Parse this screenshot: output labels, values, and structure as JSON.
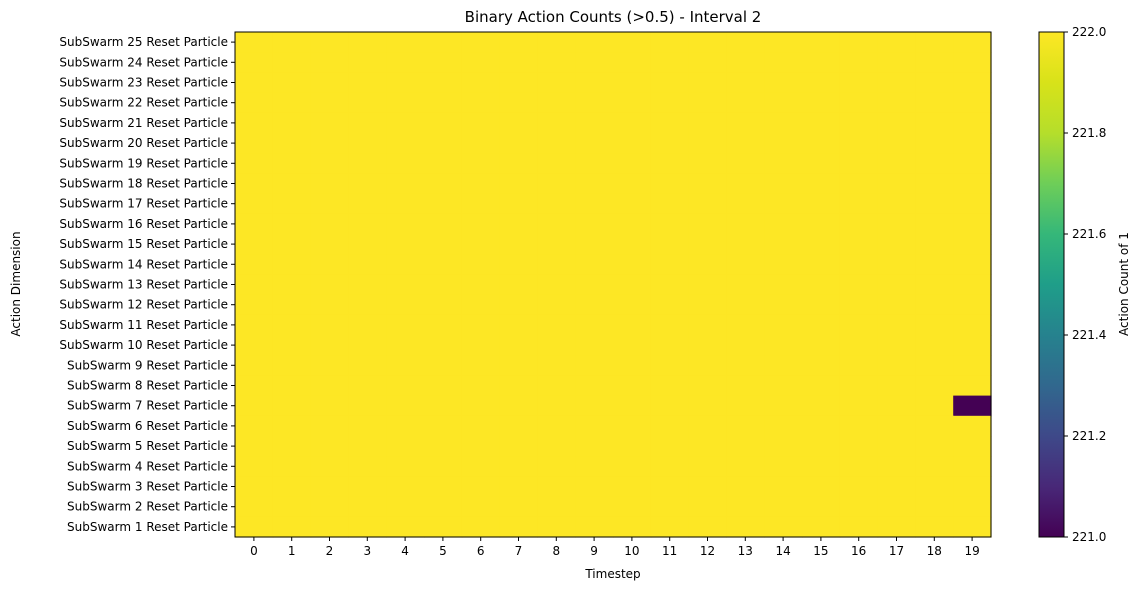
{
  "chart_data": {
    "type": "heatmap",
    "title": "Binary Action Counts (>0.5) - Interval 2",
    "xlabel": "Timestep",
    "ylabel": "Action Dimension",
    "x_categories": [
      "0",
      "1",
      "2",
      "3",
      "4",
      "5",
      "6",
      "7",
      "8",
      "9",
      "10",
      "11",
      "12",
      "13",
      "14",
      "15",
      "16",
      "17",
      "18",
      "19"
    ],
    "y_categories": [
      "SubSwarm 25 Reset Particle",
      "SubSwarm 24 Reset Particle",
      "SubSwarm 23 Reset Particle",
      "SubSwarm 22 Reset Particle",
      "SubSwarm 21 Reset Particle",
      "SubSwarm 20 Reset Particle",
      "SubSwarm 19 Reset Particle",
      "SubSwarm 18 Reset Particle",
      "SubSwarm 17 Reset Particle",
      "SubSwarm 16 Reset Particle",
      "SubSwarm 15 Reset Particle",
      "SubSwarm 14 Reset Particle",
      "SubSwarm 13 Reset Particle",
      "SubSwarm 12 Reset Particle",
      "SubSwarm 11 Reset Particle",
      "SubSwarm 10 Reset Particle",
      "SubSwarm 9 Reset Particle",
      "SubSwarm 8 Reset Particle",
      "SubSwarm 7 Reset Particle",
      "SubSwarm 6 Reset Particle",
      "SubSwarm 5 Reset Particle",
      "SubSwarm 4 Reset Particle",
      "SubSwarm 3 Reset Particle",
      "SubSwarm 2 Reset Particle",
      "SubSwarm 1 Reset Particle"
    ],
    "default_value": 222,
    "exceptions": [
      {
        "row": "SubSwarm 7 Reset Particle",
        "col": "19",
        "value": 221
      }
    ],
    "colorbar": {
      "label": "Action Count of 1",
      "min": 221.0,
      "max": 222.0,
      "ticks": [
        "221.0",
        "221.2",
        "221.4",
        "221.6",
        "221.8",
        "222.0"
      ],
      "colormap": "viridis"
    },
    "colors": {
      "high": "#fde725",
      "low": "#440154"
    }
  }
}
